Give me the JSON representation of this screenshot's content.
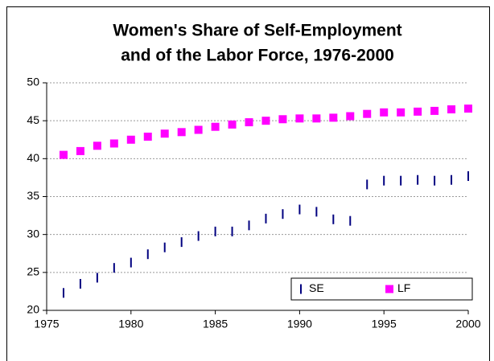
{
  "chart_data": {
    "type": "scatter",
    "title": [
      "Women's Share of Self-Employment",
      "and of the Labor Force, 1976-2000"
    ],
    "x": [
      1976,
      1977,
      1978,
      1979,
      1980,
      1981,
      1982,
      1983,
      1984,
      1985,
      1986,
      1987,
      1988,
      1989,
      1990,
      1991,
      1992,
      1993,
      1994,
      1995,
      1996,
      1997,
      1998,
      1999,
      2000
    ],
    "series": [
      {
        "name": "SE",
        "color": "#000080",
        "marker": "dash",
        "values": [
          22.3,
          23.5,
          24.3,
          25.6,
          26.3,
          27.4,
          28.3,
          29.0,
          29.8,
          30.4,
          30.4,
          31.2,
          32.1,
          32.7,
          33.3,
          33.0,
          32.0,
          31.8,
          36.6,
          37.1,
          37.1,
          37.2,
          37.1,
          37.2,
          37.7
        ]
      },
      {
        "name": "LF",
        "color": "#ff00ff",
        "marker": "square",
        "values": [
          40.5,
          41.0,
          41.7,
          42.0,
          42.5,
          42.9,
          43.3,
          43.5,
          43.8,
          44.2,
          44.5,
          44.8,
          45.0,
          45.2,
          45.3,
          45.3,
          45.4,
          45.6,
          45.9,
          46.1,
          46.1,
          46.2,
          46.3,
          46.5,
          46.6
        ]
      }
    ],
    "xlim": [
      1975,
      2000
    ],
    "xticks": [
      1975,
      1980,
      1985,
      1990,
      1995,
      2000
    ],
    "ylim": [
      20,
      50
    ],
    "yticks": [
      20,
      25,
      30,
      35,
      40,
      45,
      50
    ],
    "grid": true,
    "legend": "lower right"
  }
}
